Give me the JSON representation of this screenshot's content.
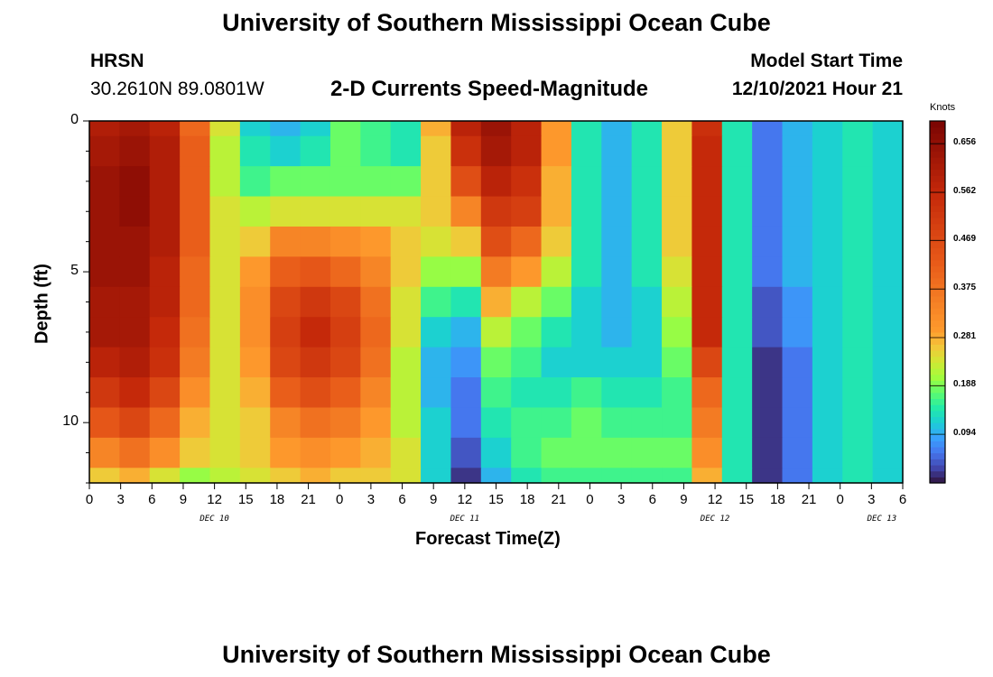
{
  "header": {
    "title": "University of Southern Mississippi Ocean Cube",
    "station": "HRSN",
    "coordinates": "30.2610N  89.0801W",
    "subtitle": "2-D Currents Speed-Magnitude",
    "model_start_label": "Model Start Time",
    "model_start_value": "12/10/2021 Hour 21"
  },
  "footer": {
    "title": "University of Southern Mississippi Ocean Cube"
  },
  "chart_data": {
    "type": "heatmap",
    "title": "2-D Currents Speed-Magnitude",
    "xlabel": "Forecast Time(Z)",
    "ylabel": "Depth (ft)",
    "x_ticks": [
      "0",
      "3",
      "6",
      "9",
      "12",
      "15",
      "18",
      "21",
      "0",
      "3",
      "6",
      "9",
      "12",
      "15",
      "18",
      "21",
      "0",
      "3",
      "6",
      "9",
      "12",
      "15",
      "18",
      "21",
      "0",
      "3",
      "6"
    ],
    "y_ticks": [
      "0",
      "5",
      "10"
    ],
    "y_range": [
      0,
      12
    ],
    "date_labels": [
      "DEC 10",
      "DEC 11",
      "DEC 12",
      "DEC 13"
    ],
    "colorbar": {
      "unit": "Knots",
      "range": [
        0.0,
        0.7
      ],
      "ticks": [
        "0.656",
        "0.562",
        "0.469",
        "0.375",
        "0.281",
        "0.188",
        "0.094"
      ]
    },
    "x_hours": [
      0,
      3,
      6,
      9,
      12,
      15,
      18,
      21,
      24,
      27,
      30,
      33,
      36,
      39,
      42,
      45,
      48,
      51,
      54,
      57,
      60,
      63,
      66,
      69,
      72,
      75,
      78
    ],
    "depths_ft": [
      0,
      1,
      2,
      3,
      4,
      5,
      6,
      7,
      8,
      9,
      10,
      11,
      12
    ],
    "speed_knots": [
      [
        0.6,
        0.62,
        0.58,
        0.4,
        0.24,
        0.12,
        0.1,
        0.12,
        0.18,
        0.16,
        0.14,
        0.28,
        0.58,
        0.64,
        0.58,
        0.3,
        0.14,
        0.1,
        0.14,
        0.26,
        0.54,
        0.14,
        0.06,
        0.1,
        0.12,
        0.14,
        0.12
      ],
      [
        0.62,
        0.64,
        0.6,
        0.42,
        0.22,
        0.14,
        0.12,
        0.14,
        0.18,
        0.16,
        0.14,
        0.26,
        0.54,
        0.62,
        0.58,
        0.3,
        0.14,
        0.1,
        0.14,
        0.26,
        0.56,
        0.14,
        0.06,
        0.1,
        0.12,
        0.14,
        0.12
      ],
      [
        0.64,
        0.66,
        0.6,
        0.42,
        0.22,
        0.16,
        0.18,
        0.18,
        0.18,
        0.18,
        0.18,
        0.26,
        0.46,
        0.58,
        0.54,
        0.28,
        0.14,
        0.1,
        0.14,
        0.26,
        0.56,
        0.14,
        0.06,
        0.1,
        0.12,
        0.14,
        0.12
      ],
      [
        0.64,
        0.66,
        0.6,
        0.42,
        0.24,
        0.22,
        0.24,
        0.24,
        0.24,
        0.24,
        0.24,
        0.26,
        0.34,
        0.52,
        0.5,
        0.28,
        0.14,
        0.1,
        0.14,
        0.26,
        0.56,
        0.14,
        0.06,
        0.1,
        0.12,
        0.14,
        0.12
      ],
      [
        0.64,
        0.64,
        0.6,
        0.42,
        0.24,
        0.26,
        0.34,
        0.34,
        0.32,
        0.3,
        0.26,
        0.24,
        0.26,
        0.46,
        0.4,
        0.26,
        0.14,
        0.1,
        0.14,
        0.26,
        0.56,
        0.14,
        0.06,
        0.1,
        0.12,
        0.14,
        0.12
      ],
      [
        0.64,
        0.64,
        0.58,
        0.4,
        0.24,
        0.3,
        0.42,
        0.44,
        0.4,
        0.34,
        0.26,
        0.2,
        0.2,
        0.36,
        0.3,
        0.22,
        0.14,
        0.1,
        0.14,
        0.24,
        0.56,
        0.14,
        0.06,
        0.1,
        0.12,
        0.14,
        0.12
      ],
      [
        0.62,
        0.62,
        0.58,
        0.4,
        0.24,
        0.32,
        0.48,
        0.52,
        0.48,
        0.38,
        0.24,
        0.16,
        0.14,
        0.28,
        0.22,
        0.18,
        0.12,
        0.1,
        0.12,
        0.22,
        0.56,
        0.14,
        0.04,
        0.08,
        0.12,
        0.14,
        0.12
      ],
      [
        0.62,
        0.62,
        0.56,
        0.38,
        0.24,
        0.32,
        0.5,
        0.56,
        0.5,
        0.4,
        0.24,
        0.12,
        0.1,
        0.22,
        0.18,
        0.14,
        0.12,
        0.1,
        0.12,
        0.2,
        0.56,
        0.14,
        0.04,
        0.08,
        0.12,
        0.14,
        0.12
      ],
      [
        0.58,
        0.6,
        0.54,
        0.36,
        0.24,
        0.3,
        0.48,
        0.52,
        0.48,
        0.38,
        0.22,
        0.1,
        0.08,
        0.18,
        0.16,
        0.12,
        0.12,
        0.12,
        0.12,
        0.18,
        0.48,
        0.14,
        0.02,
        0.06,
        0.12,
        0.14,
        0.12
      ],
      [
        0.52,
        0.56,
        0.48,
        0.32,
        0.24,
        0.28,
        0.42,
        0.46,
        0.42,
        0.34,
        0.22,
        0.1,
        0.06,
        0.16,
        0.14,
        0.14,
        0.16,
        0.14,
        0.14,
        0.16,
        0.4,
        0.14,
        0.02,
        0.06,
        0.12,
        0.14,
        0.12
      ],
      [
        0.44,
        0.48,
        0.4,
        0.28,
        0.24,
        0.26,
        0.34,
        0.38,
        0.36,
        0.3,
        0.22,
        0.12,
        0.06,
        0.14,
        0.16,
        0.16,
        0.18,
        0.16,
        0.16,
        0.16,
        0.36,
        0.14,
        0.02,
        0.06,
        0.12,
        0.14,
        0.12
      ],
      [
        0.34,
        0.38,
        0.32,
        0.26,
        0.24,
        0.26,
        0.3,
        0.32,
        0.3,
        0.28,
        0.24,
        0.12,
        0.04,
        0.12,
        0.16,
        0.18,
        0.18,
        0.18,
        0.18,
        0.18,
        0.32,
        0.14,
        0.02,
        0.06,
        0.12,
        0.14,
        0.12
      ],
      [
        0.26,
        0.28,
        0.24,
        0.2,
        0.22,
        0.24,
        0.26,
        0.28,
        0.26,
        0.26,
        0.24,
        0.12,
        0.02,
        0.1,
        0.14,
        0.16,
        0.16,
        0.16,
        0.16,
        0.16,
        0.28,
        0.14,
        0.02,
        0.06,
        0.12,
        0.14,
        0.12
      ]
    ]
  }
}
